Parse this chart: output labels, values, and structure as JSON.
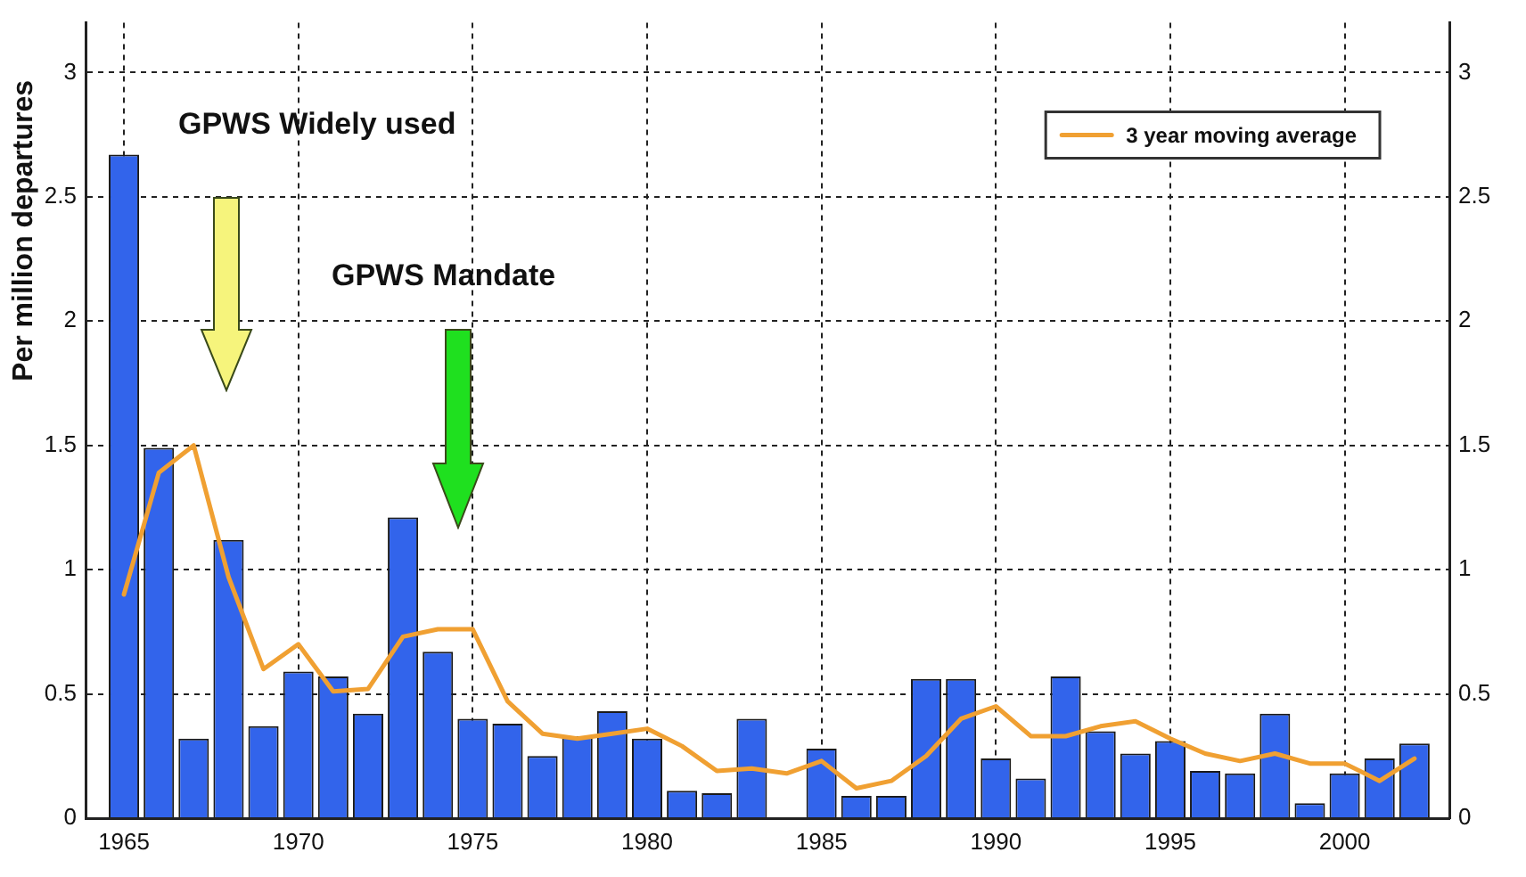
{
  "chart_data": {
    "type": "bar",
    "ylabel": "Per million departures",
    "x": [
      1965,
      1966,
      1967,
      1968,
      1969,
      1970,
      1971,
      1972,
      1973,
      1974,
      1975,
      1976,
      1977,
      1978,
      1979,
      1980,
      1981,
      1982,
      1983,
      1984,
      1985,
      1986,
      1987,
      1988,
      1989,
      1990,
      1991,
      1992,
      1993,
      1994,
      1995,
      1996,
      1997,
      1998,
      1999,
      2000,
      2001,
      2002
    ],
    "xlim": [
      1963.9,
      2003
    ],
    "xticks": [
      1965,
      1970,
      1975,
      1980,
      1985,
      1990,
      1995,
      2000
    ],
    "ylim": [
      0,
      3.2
    ],
    "yticks": [
      0,
      0.5,
      1,
      1.5,
      2,
      2.5,
      3
    ],
    "y2lim": [
      0,
      3.2
    ],
    "y2ticks": [
      0,
      0.5,
      1,
      1.5,
      2,
      2.5,
      3
    ],
    "grid": true,
    "legend": "top right",
    "marker": "none",
    "series": [
      {
        "color": "#3264eb",
        "values": [
          2.67,
          1.49,
          0.32,
          1.12,
          0.37,
          0.59,
          0.57,
          0.42,
          1.21,
          0.67,
          0.4,
          0.38,
          0.25,
          0.33,
          0.43,
          0.32,
          0.11,
          0.1,
          0.4,
          0,
          0.28,
          0.09,
          0.09,
          0.56,
          0.56,
          0.24,
          0.16,
          0.57,
          0.35,
          0.26,
          0.31,
          0.19,
          0.18,
          0.42,
          0.06,
          0.18,
          0.24,
          0.3
        ]
      },
      {
        "type": "line",
        "name": "3 year moving average",
        "color": "#f0a032",
        "values": [
          0.9,
          1.39,
          1.5,
          0.97,
          0.6,
          0.7,
          0.51,
          0.52,
          0.73,
          0.76,
          0.76,
          0.47,
          0.34,
          0.32,
          0.34,
          0.36,
          0.29,
          0.19,
          0.2,
          0.18,
          0.23,
          0.12,
          0.15,
          0.25,
          0.4,
          0.45,
          0.33,
          0.33,
          0.37,
          0.39,
          0.32,
          0.26,
          0.23,
          0.26,
          0.22,
          0.22,
          0.15,
          0.24
        ]
      }
    ],
    "annotations": [
      "GPWS Widely used",
      "GPWS Mandate"
    ]
  }
}
